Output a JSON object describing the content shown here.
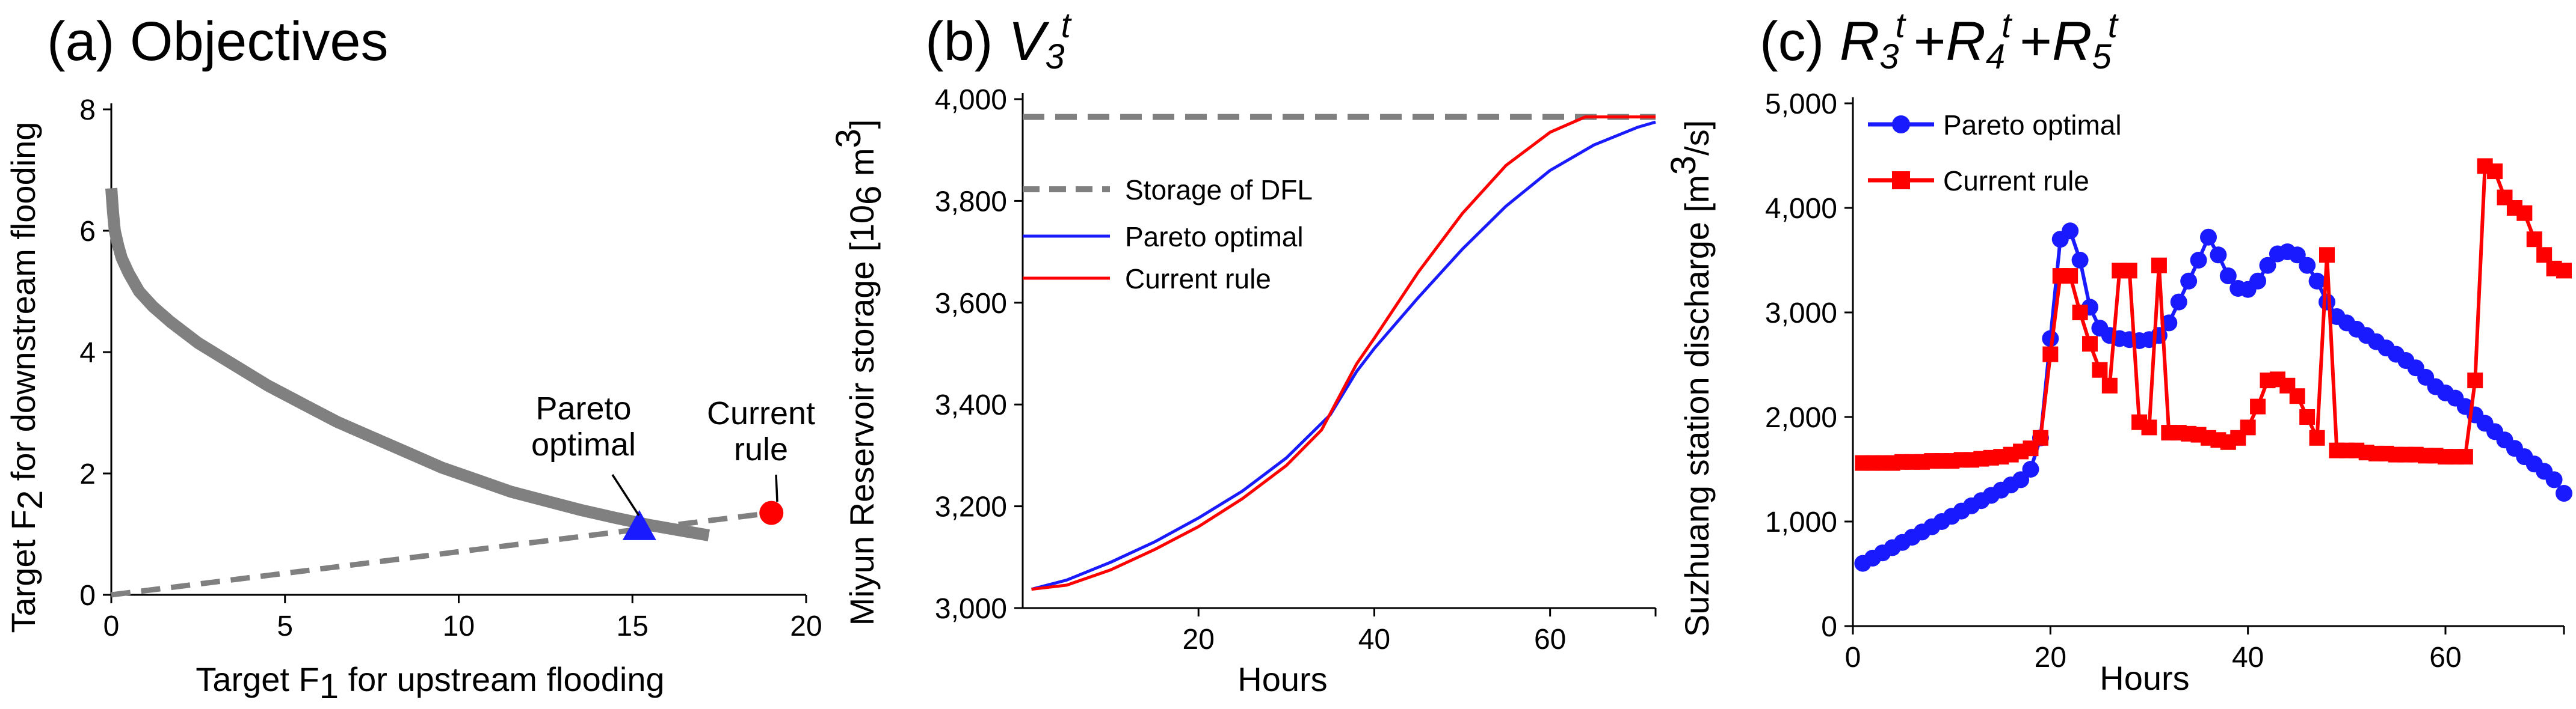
{
  "colors": {
    "pareto": "#1a1aff",
    "current": "#ff0000",
    "front": "#808080",
    "axis": "#000000"
  },
  "chart_data": [
    {
      "id": "a",
      "type": "scatter",
      "title_prefix": "(a)",
      "title_main": "Objectives",
      "xlabel": {
        "pre": "Target F",
        "sub": "1",
        "post": " for upstream flooding"
      },
      "ylabel": {
        "pre": "Target F",
        "sub": "2",
        "post": " for downstream flooding"
      },
      "xlim": [
        0,
        20
      ],
      "ylim": [
        0,
        8
      ],
      "xticks": [
        0,
        5,
        10,
        15,
        20
      ],
      "yticks": [
        0,
        2,
        4,
        6,
        8
      ],
      "tick_labels_x": [
        "0",
        "5",
        "10",
        "15",
        "20"
      ],
      "tick_labels_y": [
        "0",
        "2",
        "4",
        "6",
        "8"
      ],
      "series": [
        {
          "name": "Pareto front",
          "style": "thick-gray",
          "x": [
            0,
            0.05,
            0.1,
            0.2,
            0.3,
            0.5,
            0.8,
            1.2,
            1.7,
            2.5,
            3.5,
            4.5,
            5.5,
            6.5,
            7.5,
            8.5,
            9.5,
            10.5,
            11.5,
            12.5,
            13.5,
            14.5,
            15.5,
            16.5,
            17.2
          ],
          "y": [
            6.7,
            6.3,
            6.0,
            5.75,
            5.55,
            5.3,
            5.0,
            4.75,
            4.5,
            4.15,
            3.8,
            3.45,
            3.15,
            2.85,
            2.6,
            2.35,
            2.1,
            1.9,
            1.7,
            1.55,
            1.4,
            1.27,
            1.15,
            1.05,
            0.98
          ]
        },
        {
          "name": "Reference line",
          "style": "dashed-gray",
          "x": [
            0,
            19
          ],
          "y": [
            0,
            1.35
          ]
        },
        {
          "name": "Pareto optimal",
          "marker": "triangle",
          "x": [
            15.2
          ],
          "y": [
            1.1
          ]
        },
        {
          "name": "Current rule",
          "marker": "circle",
          "x": [
            19.0
          ],
          "y": [
            1.35
          ]
        }
      ],
      "annotations": [
        {
          "lines": [
            "Pareto",
            "optimal"
          ],
          "target": "Pareto optimal"
        },
        {
          "lines": [
            "Current",
            "rule"
          ],
          "target": "Current rule"
        }
      ]
    },
    {
      "id": "b",
      "type": "line",
      "title_prefix": "(b)",
      "title_var": "V",
      "title_sub": "3",
      "title_sup": "t",
      "xlabel": "Hours",
      "ylabel": {
        "pre": "Miyun Reservoir storage [10",
        "sub": "6",
        "post": " m",
        "sup": "3",
        "end": "]"
      },
      "xlim": [
        0,
        72
      ],
      "ylim": [
        3000,
        4000
      ],
      "xticks": [
        20,
        40,
        60
      ],
      "yticks": [
        3000,
        3200,
        3400,
        3600,
        3800,
        4000
      ],
      "tick_labels_x": [
        "20",
        "40",
        "60"
      ],
      "tick_labels_y": [
        "3,000",
        "3,200",
        "3,400",
        "3,600",
        "3,800",
        "4,000"
      ],
      "legend": [
        "Storage of DFL",
        "Pareto optimal",
        "Current rule"
      ],
      "series": [
        {
          "name": "Storage of DFL",
          "style": "dashed-gray",
          "x": [
            0,
            72
          ],
          "y": [
            3965,
            3965
          ]
        },
        {
          "name": "Pareto optimal",
          "x": [
            1,
            5,
            10,
            15,
            20,
            25,
            30,
            35,
            38,
            40,
            45,
            50,
            55,
            60,
            65,
            70,
            72
          ],
          "y": [
            3037,
            3055,
            3090,
            3130,
            3177,
            3230,
            3295,
            3380,
            3465,
            3510,
            3610,
            3705,
            3790,
            3860,
            3910,
            3945,
            3955
          ]
        },
        {
          "name": "Current rule",
          "x": [
            1,
            5,
            10,
            15,
            20,
            25,
            30,
            34,
            38,
            40,
            45,
            50,
            55,
            60,
            64,
            72
          ],
          "y": [
            3037,
            3045,
            3075,
            3115,
            3160,
            3215,
            3280,
            3350,
            3480,
            3530,
            3660,
            3775,
            3870,
            3935,
            3965,
            3965
          ]
        }
      ]
    },
    {
      "id": "c",
      "type": "line",
      "title_prefix": "(c)",
      "title_terms": [
        {
          "var": "R",
          "sub": "3",
          "sup": "t"
        },
        {
          "var": "R",
          "sub": "4",
          "sup": "t"
        },
        {
          "var": "R",
          "sub": "5",
          "sup": "t"
        }
      ],
      "title_join": "+",
      "xlabel": "Hours",
      "ylabel": {
        "pre": "Suzhuang station discharge [m",
        "sup": "3",
        "post": "/s]"
      },
      "xlim": [
        0,
        72
      ],
      "ylim": [
        0,
        5000
      ],
      "xticks": [
        0,
        20,
        40,
        60
      ],
      "yticks": [
        0,
        1000,
        2000,
        3000,
        4000,
        5000
      ],
      "tick_labels_x": [
        "0",
        "20",
        "40",
        "60"
      ],
      "tick_labels_y": [
        "0",
        "1,000",
        "2,000",
        "3,000",
        "4,000",
        "5,000"
      ],
      "legend": [
        "Pareto optimal",
        "Current rule"
      ],
      "series": [
        {
          "name": "Pareto optimal",
          "marker": "circle",
          "x": [
            1,
            2,
            3,
            4,
            5,
            6,
            7,
            8,
            9,
            10,
            11,
            12,
            13,
            14,
            15,
            16,
            17,
            18,
            19,
            20,
            21,
            22,
            23,
            24,
            25,
            26,
            27,
            28,
            29,
            30,
            31,
            32,
            33,
            34,
            35,
            36,
            37,
            38,
            39,
            40,
            41,
            42,
            43,
            44,
            45,
            46,
            47,
            48,
            49,
            50,
            51,
            52,
            53,
            54,
            55,
            56,
            57,
            58,
            59,
            60,
            61,
            62,
            63,
            64,
            65,
            66,
            67,
            68,
            69,
            70,
            71,
            72
          ],
          "y": [
            600,
            650,
            700,
            750,
            800,
            850,
            900,
            950,
            1000,
            1050,
            1100,
            1150,
            1200,
            1250,
            1300,
            1350,
            1400,
            1500,
            1800,
            2750,
            3700,
            3780,
            3500,
            3050,
            2850,
            2780,
            2750,
            2740,
            2730,
            2740,
            2780,
            2900,
            3100,
            3300,
            3500,
            3720,
            3550,
            3350,
            3230,
            3220,
            3300,
            3450,
            3560,
            3580,
            3550,
            3450,
            3300,
            3100,
            2960,
            2900,
            2840,
            2780,
            2720,
            2660,
            2600,
            2540,
            2470,
            2380,
            2290,
            2230,
            2180,
            2100,
            2020,
            1940,
            1860,
            1780,
            1700,
            1620,
            1550,
            1480,
            1400,
            1270
          ]
        },
        {
          "name": "Current rule",
          "marker": "square",
          "x": [
            1,
            2,
            3,
            4,
            5,
            6,
            7,
            8,
            9,
            10,
            11,
            12,
            13,
            14,
            15,
            16,
            17,
            18,
            19,
            20,
            21,
            22,
            23,
            24,
            25,
            26,
            27,
            28,
            29,
            30,
            31,
            32,
            33,
            34,
            35,
            36,
            37,
            38,
            39,
            40,
            41,
            42,
            43,
            44,
            45,
            46,
            47,
            48,
            49,
            50,
            51,
            52,
            53,
            54,
            55,
            56,
            57,
            58,
            59,
            60,
            61,
            62,
            63,
            64,
            65,
            66,
            67,
            68,
            69,
            70,
            71,
            72
          ],
          "y": [
            1560,
            1560,
            1560,
            1560,
            1570,
            1570,
            1570,
            1580,
            1580,
            1580,
            1590,
            1590,
            1600,
            1610,
            1620,
            1640,
            1670,
            1700,
            1800,
            2600,
            3350,
            3350,
            3000,
            2700,
            2450,
            2300,
            3400,
            3400,
            1950,
            1900,
            3450,
            1850,
            1850,
            1840,
            1830,
            1800,
            1780,
            1760,
            1800,
            1900,
            2100,
            2350,
            2360,
            2300,
            2200,
            2000,
            1800,
            3550,
            1680,
            1680,
            1680,
            1660,
            1650,
            1650,
            1640,
            1640,
            1640,
            1630,
            1630,
            1620,
            1620,
            1620,
            2350,
            4400,
            4350,
            4100,
            4000,
            3950,
            3700,
            3550,
            3420,
            3400
          ]
        }
      ]
    }
  ]
}
